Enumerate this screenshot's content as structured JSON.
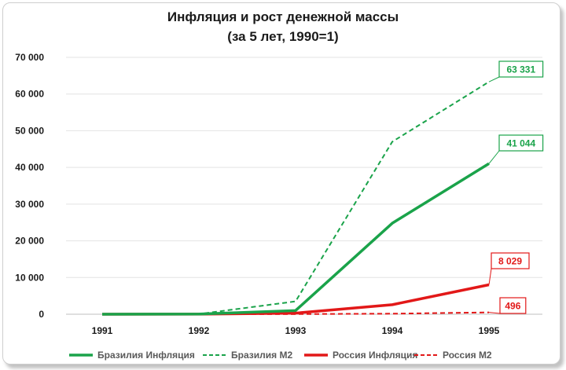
{
  "chart_data": {
    "type": "line",
    "title": "Инфляция и рост денежной массы",
    "subtitle": "(за 5 лет, 1990=1)",
    "categories": [
      "1991",
      "1992",
      "1993",
      "1994",
      "1995"
    ],
    "ylim": [
      0,
      70000
    ],
    "y_ticks": [
      "0",
      "10 000",
      "20 000",
      "30 000",
      "40 000",
      "50 000",
      "60 000",
      "70 000"
    ],
    "grid": true,
    "legend_position": "bottom",
    "series": [
      {
        "name": "Бразилия Инфляция",
        "color": "#1aa34a",
        "dash": "solid",
        "values": [
          4,
          50,
          1000,
          24800,
          41044
        ],
        "label": "41 044"
      },
      {
        "name": "Бразилия М2",
        "color": "#1aa34a",
        "dash": "dashed",
        "values": [
          5,
          60,
          3500,
          47000,
          63331
        ],
        "label": "63 331"
      },
      {
        "name": "Россия Инфляция",
        "color": "#e21818",
        "dash": "solid",
        "values": [
          2,
          27,
          300,
          2600,
          8029
        ],
        "label": "8 029"
      },
      {
        "name": "Россия М2",
        "color": "#e21818",
        "dash": "dashed",
        "values": [
          1,
          10,
          40,
          150,
          496
        ],
        "label": "496"
      }
    ]
  }
}
